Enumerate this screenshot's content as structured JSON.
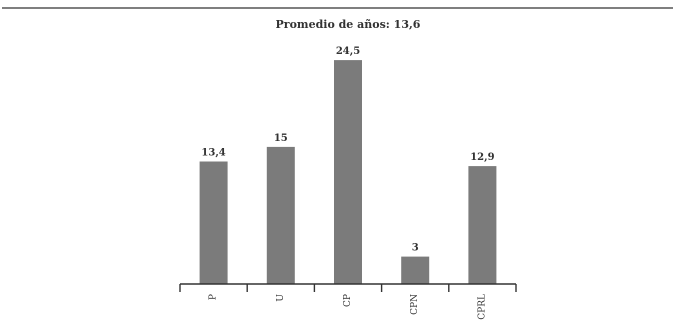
{
  "chart_data": {
    "type": "bar",
    "title": "Promedio de años: 13,6",
    "categories": [
      "P",
      "U",
      "CP",
      "CPN",
      "CPRL"
    ],
    "values": [
      13.4,
      15,
      24.5,
      3,
      12.9
    ],
    "value_labels": [
      "13,4",
      "15",
      "24,5",
      "3",
      "12,9"
    ],
    "xlabel": "",
    "ylabel": "",
    "ylim": [
      0,
      26.7
    ],
    "grid": false,
    "bar_color": "#7b7b7b",
    "axis_color": "#333333"
  }
}
